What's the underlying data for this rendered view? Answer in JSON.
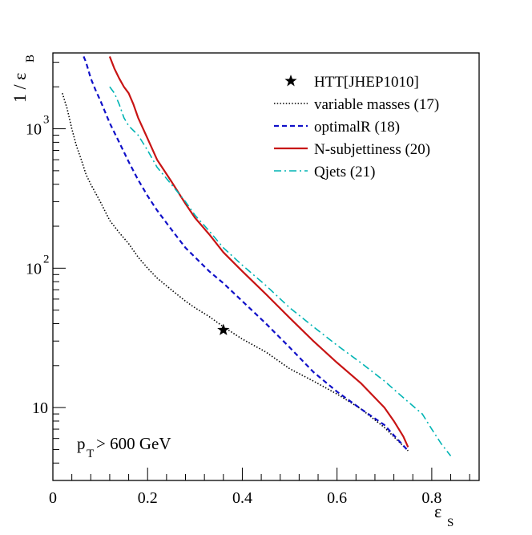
{
  "chart_data": {
    "type": "line",
    "title": "",
    "xlabel": {
      "main": "ε",
      "sub": "S"
    },
    "ylabel": {
      "main": "1 / ε",
      "sub": "B"
    },
    "xlim": [
      0,
      0.9
    ],
    "ylim": [
      3,
      3500
    ],
    "yscale": "log",
    "grid": false,
    "legend_position": "top-right",
    "x_ticks": [
      {
        "value": 0,
        "label": "0"
      },
      {
        "value": 0.2,
        "label": "0.2"
      },
      {
        "value": 0.4,
        "label": "0.4"
      },
      {
        "value": 0.6,
        "label": "0.6"
      },
      {
        "value": 0.8,
        "label": "0.8"
      }
    ],
    "y_ticks": [
      {
        "value": 10,
        "label": "10"
      },
      {
        "value": 100,
        "label": "10",
        "exponent": "2"
      },
      {
        "value": 1000,
        "label": "10",
        "exponent": "3"
      }
    ],
    "annotation": {
      "main": "p",
      "sub": "T",
      "rest": " > 600 GeV"
    },
    "series": [
      {
        "name": "HTT[JHEP1010]",
        "kind": "marker",
        "color": "#000000",
        "x": [
          0.36
        ],
        "y": [
          36
        ]
      },
      {
        "name": "variable masses (17)",
        "kind": "line",
        "style": "dotted",
        "color": "#000000",
        "x": [
          0.02,
          0.03,
          0.04,
          0.05,
          0.06,
          0.07,
          0.08,
          0.1,
          0.12,
          0.14,
          0.16,
          0.18,
          0.2,
          0.22,
          0.25,
          0.28,
          0.3,
          0.33,
          0.36,
          0.4,
          0.45,
          0.5,
          0.55,
          0.6,
          0.65,
          0.7,
          0.75
        ],
        "y": [
          1800,
          1400,
          1000,
          750,
          600,
          470,
          400,
          300,
          220,
          180,
          150,
          120,
          100,
          85,
          70,
          58,
          52,
          45,
          38,
          31,
          25,
          19,
          15.5,
          12.5,
          9.8,
          7.2,
          4.9
        ]
      },
      {
        "name": "optimalR (18)",
        "kind": "line",
        "style": "dashed",
        "color": "#1010c8",
        "x": [
          0.065,
          0.07,
          0.08,
          0.09,
          0.1,
          0.12,
          0.14,
          0.16,
          0.18,
          0.2,
          0.22,
          0.25,
          0.28,
          0.3,
          0.33,
          0.36,
          0.4,
          0.45,
          0.5,
          0.55,
          0.6,
          0.65,
          0.7,
          0.75
        ],
        "y": [
          3300,
          3000,
          2300,
          1900,
          1600,
          1100,
          800,
          580,
          430,
          330,
          260,
          190,
          140,
          120,
          95,
          78,
          58,
          40,
          27,
          18,
          13,
          9.8,
          7.5,
          4.9
        ]
      },
      {
        "name": "N-subjettiness (20)",
        "kind": "line",
        "style": "solid",
        "color": "#c81414",
        "x": [
          0.12,
          0.13,
          0.14,
          0.15,
          0.16,
          0.17,
          0.18,
          0.2,
          0.22,
          0.25,
          0.28,
          0.3,
          0.33,
          0.36,
          0.4,
          0.45,
          0.5,
          0.55,
          0.6,
          0.65,
          0.7,
          0.72,
          0.74,
          0.75
        ],
        "y": [
          3300,
          2700,
          2300,
          2000,
          1800,
          1500,
          1200,
          850,
          600,
          420,
          290,
          230,
          175,
          130,
          95,
          65,
          44,
          30,
          21,
          15,
          10,
          8,
          6.2,
          5.2
        ]
      },
      {
        "name": "Qjets (21)",
        "kind": "line",
        "style": "dashdot",
        "color": "#00b4b4",
        "x": [
          0.12,
          0.13,
          0.14,
          0.15,
          0.16,
          0.18,
          0.2,
          0.22,
          0.25,
          0.28,
          0.3,
          0.33,
          0.36,
          0.4,
          0.45,
          0.5,
          0.55,
          0.6,
          0.65,
          0.7,
          0.75,
          0.78,
          0.8,
          0.82,
          0.84
        ],
        "y": [
          2000,
          1800,
          1500,
          1200,
          1050,
          900,
          700,
          530,
          400,
          300,
          240,
          185,
          140,
          105,
          75,
          52,
          38,
          28,
          21,
          15.5,
          11,
          9,
          7,
          5.5,
          4.5
        ]
      }
    ]
  }
}
